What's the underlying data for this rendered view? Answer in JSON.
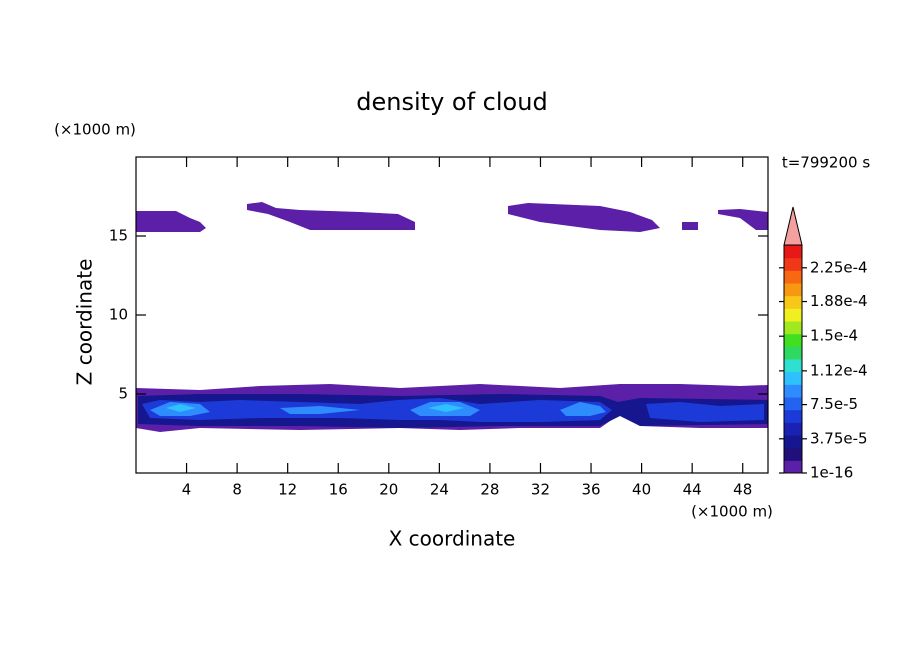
{
  "chart_data": {
    "type": "contour",
    "title": "density of cloud",
    "x_label": "X coordinate",
    "y_label": "Z coordinate",
    "x_unit": "(×1000 m)",
    "y_unit": "(×1000 m)",
    "time_label": "t=799200 s",
    "xlim": [
      0,
      50
    ],
    "ylim": [
      0,
      20
    ],
    "xticks": [
      4,
      8,
      12,
      16,
      20,
      24,
      28,
      32,
      36,
      40,
      44,
      48
    ],
    "yticks": [
      5,
      10,
      15
    ],
    "colorbar": {
      "clim": [
        0,
        0.00025
      ],
      "colors": [
        "#5b1fa8",
        "#22107a",
        "#16168e",
        "#1a22b4",
        "#1c3ad8",
        "#2462f0",
        "#2f8cff",
        "#2fc0ff",
        "#2fe0d0",
        "#2fd860",
        "#40e020",
        "#a0e820",
        "#f0f020",
        "#f8c818",
        "#f89810",
        "#f86810",
        "#f03818",
        "#e81818"
      ],
      "extend_color": "#f4a0a0",
      "ticks": [
        {
          "value": 1e-16,
          "label": "1e-16"
        },
        {
          "value": 3.75e-05,
          "label": "3.75e-5"
        },
        {
          "value": 7.5e-05,
          "label": "7.5e-5"
        },
        {
          "value": 0.000112,
          "label": "1.12e-4"
        },
        {
          "value": 0.00015,
          "label": "1.5e-4"
        },
        {
          "value": 0.000188,
          "label": "1.88e-4"
        },
        {
          "value": 0.000225,
          "label": "2.25e-4"
        }
      ]
    }
  }
}
